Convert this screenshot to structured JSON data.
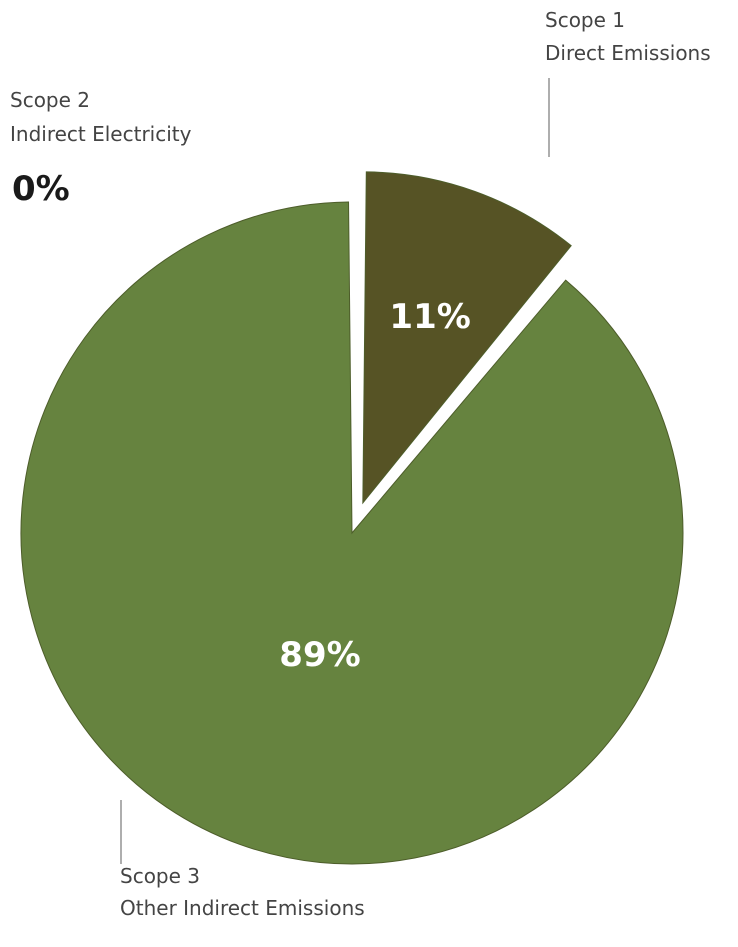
{
  "chart_data": {
    "type": "pie",
    "slices": [
      {
        "category": "Scope 1",
        "description": "Direct Emissions",
        "value": 11,
        "label": "11%",
        "color": "#565325",
        "exploded": true
      },
      {
        "category": "Scope 2",
        "description": "Indirect Electricity",
        "value": 0,
        "label": "0%",
        "color": "#1a1a1a",
        "exploded": false
      },
      {
        "category": "Scope 3",
        "description": "Other Indirect Emissions",
        "value": 89,
        "label": "89%",
        "color": "#66833f",
        "exploded": false
      }
    ]
  }
}
